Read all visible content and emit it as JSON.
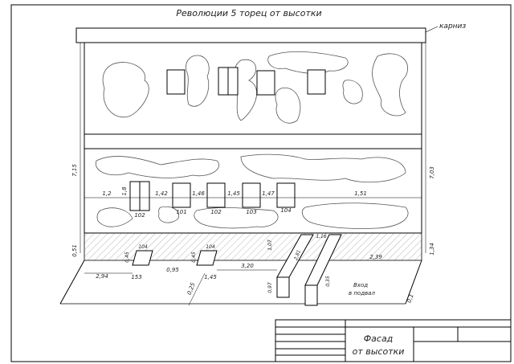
{
  "drawing": {
    "title": "Революции 5 торец от высотки",
    "cornice_label": "карниз",
    "stamp": {
      "line1": "Фасад",
      "line2": "от высотки"
    },
    "left_heights": [
      "7,15",
      "0,51"
    ],
    "right_heights": [
      "7,03",
      "1,34"
    ],
    "window_row_dims": [
      "1,2",
      "1,8",
      "1,42",
      "1,46",
      "1,45",
      "1,47",
      "1,51"
    ],
    "window_widths": [
      "102",
      "101",
      "102",
      "103",
      "104"
    ],
    "basement_window_labels": [
      {
        "top": "104",
        "side": "0,45",
        "bottom": "153"
      },
      {
        "top": "104",
        "side": "0,45",
        "bottom": "1,45"
      }
    ],
    "ground_dims": [
      "2,94",
      "0,95",
      "3,20",
      "2,39",
      "0,25",
      "0,1"
    ],
    "stair_dims": [
      "1,07",
      "2,81",
      "1,16",
      "0,97",
      "0,35"
    ],
    "basement_entry": {
      "line1": "Вход",
      "line2": "в подвал"
    }
  }
}
